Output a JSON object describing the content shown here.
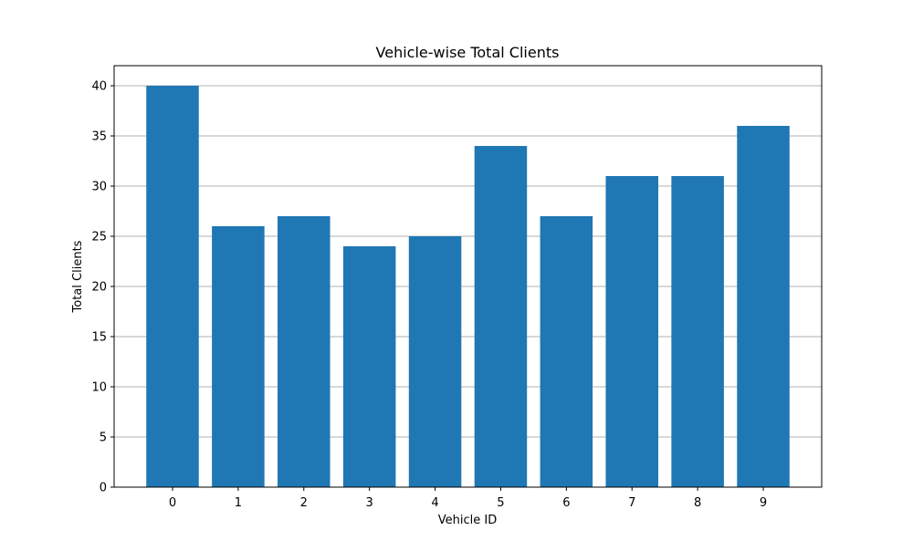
{
  "chart_data": {
    "type": "bar",
    "title": "Vehicle-wise Total Clients",
    "xlabel": "Vehicle ID",
    "ylabel": "Total Clients",
    "categories": [
      "0",
      "1",
      "2",
      "3",
      "4",
      "5",
      "6",
      "7",
      "8",
      "9"
    ],
    "values": [
      40,
      26,
      27,
      24,
      25,
      34,
      27,
      31,
      31,
      36
    ],
    "ylim": [
      0,
      42
    ],
    "yticks": [
      0,
      5,
      10,
      15,
      20,
      25,
      30,
      35,
      40
    ],
    "grid": "horizontal",
    "bar_color": "#1f77b4"
  }
}
